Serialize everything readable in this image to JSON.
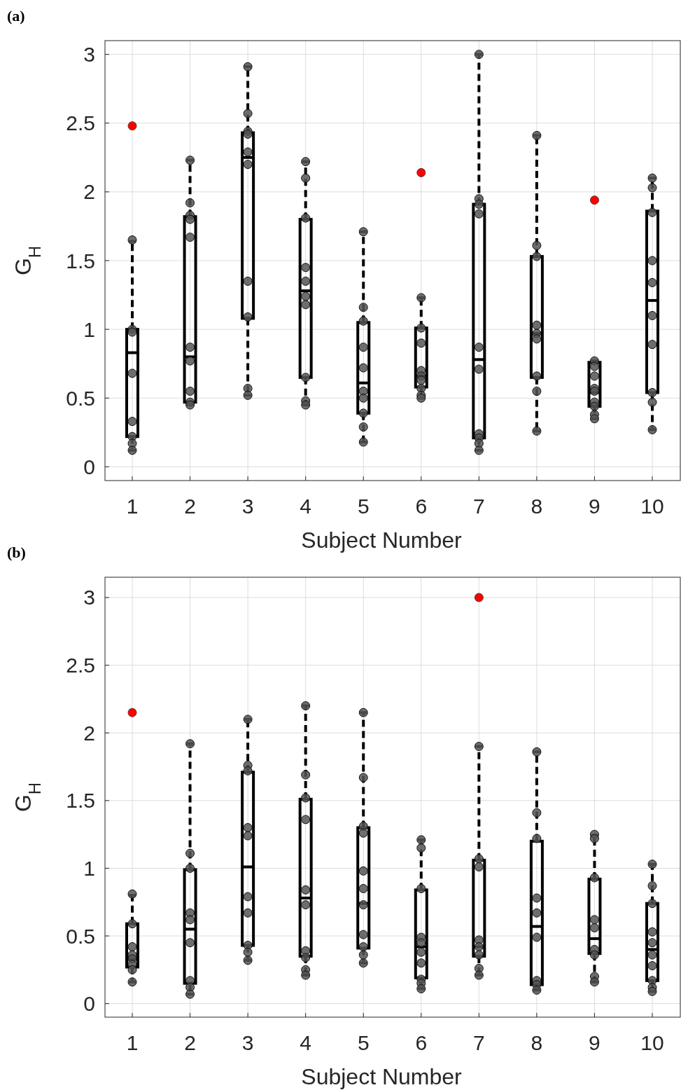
{
  "chart_data": [
    {
      "type": "box",
      "title": "(a)",
      "xlabel": "Subject Number",
      "ylabel": "G$_{H}$",
      "categories": [
        "1",
        "2",
        "3",
        "4",
        "5",
        "6",
        "7",
        "8",
        "9",
        "10"
      ],
      "ylim": [
        -0.1,
        3.1
      ],
      "yticks": [
        0,
        0.5,
        1,
        1.5,
        2,
        2.5,
        3
      ],
      "grid": true,
      "boxes": [
        {
          "low": 0.12,
          "q1": 0.22,
          "median": 0.83,
          "q3": 1.0,
          "high": 1.64,
          "outliers": [
            2.48
          ]
        },
        {
          "low": 0.45,
          "q1": 0.47,
          "median": 0.8,
          "q3": 1.82,
          "high": 2.23
        },
        {
          "low": 0.52,
          "q1": 1.08,
          "median": 2.25,
          "q3": 2.43,
          "high": 2.91
        },
        {
          "low": 0.45,
          "q1": 0.65,
          "median": 1.28,
          "q3": 1.8,
          "high": 2.22
        },
        {
          "low": 0.18,
          "q1": 0.39,
          "median": 0.61,
          "q3": 1.05,
          "high": 1.71
        },
        {
          "low": 0.5,
          "q1": 0.58,
          "median": 0.66,
          "q3": 1.01,
          "high": 1.23,
          "outliers": [
            2.14
          ]
        },
        {
          "low": 0.12,
          "q1": 0.21,
          "median": 0.78,
          "q3": 1.91,
          "high": 3.0
        },
        {
          "low": 0.26,
          "q1": 0.65,
          "median": 0.97,
          "q3": 1.53,
          "high": 2.41
        },
        {
          "low": 0.35,
          "q1": 0.44,
          "median": 0.54,
          "q3": 0.76,
          "high": 0.77,
          "outliers": [
            1.94
          ]
        },
        {
          "low": 0.27,
          "q1": 0.54,
          "median": 1.21,
          "q3": 1.86,
          "high": 2.1
        }
      ],
      "series": [
        {
          "type": "scatter",
          "color": "#555555",
          "marker": "circle",
          "x": [
            "1",
            "1",
            "1",
            "1",
            "1",
            "1",
            "1",
            "1",
            "2",
            "2",
            "2",
            "2",
            "2",
            "2",
            "2",
            "2",
            "2",
            "2",
            "3",
            "3",
            "3",
            "3",
            "3",
            "3",
            "3",
            "3",
            "3",
            "3",
            "4",
            "4",
            "4",
            "4",
            "4",
            "4",
            "4",
            "4",
            "4",
            "4",
            "5",
            "5",
            "5",
            "5",
            "5",
            "5",
            "5",
            "5",
            "5",
            "5",
            "6",
            "6",
            "6",
            "6",
            "6",
            "6",
            "6",
            "6",
            "6",
            "7",
            "7",
            "7",
            "7",
            "7",
            "7",
            "7",
            "7",
            "7",
            "7",
            "8",
            "8",
            "8",
            "8",
            "8",
            "8",
            "8",
            "8",
            "8",
            "9",
            "9",
            "9",
            "9",
            "9",
            "9",
            "9",
            "9",
            "9",
            "10",
            "10",
            "10",
            "10",
            "10",
            "10",
            "10",
            "10",
            "10",
            "10"
          ],
          "values": [
            1.65,
            1.0,
            0.98,
            0.68,
            0.33,
            0.22,
            0.17,
            0.12,
            2.23,
            1.92,
            1.83,
            1.8,
            1.67,
            0.87,
            0.77,
            0.55,
            0.47,
            0.45,
            2.91,
            2.57,
            2.44,
            2.42,
            2.29,
            2.2,
            1.35,
            1.09,
            0.57,
            0.52,
            2.22,
            2.1,
            1.81,
            1.45,
            1.35,
            1.24,
            1.18,
            0.65,
            0.48,
            0.45,
            1.71,
            1.16,
            1.06,
            0.87,
            0.72,
            0.55,
            0.5,
            0.39,
            0.29,
            0.18,
            1.23,
            1.01,
            0.9,
            0.7,
            0.66,
            0.63,
            0.57,
            0.52,
            0.5,
            3.0,
            1.95,
            1.91,
            1.84,
            0.87,
            0.71,
            0.24,
            0.21,
            0.17,
            0.12,
            2.41,
            1.61,
            1.53,
            1.03,
            0.97,
            0.93,
            0.66,
            0.55,
            0.26,
            0.77,
            0.73,
            0.66,
            0.57,
            0.55,
            0.47,
            0.44,
            0.38,
            0.35,
            2.1,
            2.03,
            1.85,
            1.5,
            1.34,
            1.1,
            0.89,
            0.54,
            0.47,
            0.27
          ]
        }
      ]
    },
    {
      "type": "box",
      "title": "(b)",
      "xlabel": "Subject Number",
      "ylabel": "G$_{H}$",
      "categories": [
        "1",
        "2",
        "3",
        "4",
        "5",
        "6",
        "7",
        "8",
        "9",
        "10"
      ],
      "ylim": [
        -0.1,
        3.15
      ],
      "yticks": [
        0,
        0.5,
        1,
        1.5,
        2,
        2.5,
        3
      ],
      "grid": true,
      "boxes": [
        {
          "low": 0.16,
          "q1": 0.27,
          "median": 0.33,
          "q3": 0.59,
          "high": 0.8,
          "outliers": [
            2.15
          ]
        },
        {
          "low": 0.07,
          "q1": 0.15,
          "median": 0.55,
          "q3": 0.99,
          "high": 1.92
        },
        {
          "low": 0.32,
          "q1": 0.43,
          "median": 1.01,
          "q3": 1.71,
          "high": 2.1
        },
        {
          "low": 0.21,
          "q1": 0.35,
          "median": 0.78,
          "q3": 1.51,
          "high": 2.2
        },
        {
          "low": 0.3,
          "q1": 0.41,
          "median": 0.74,
          "q3": 1.3,
          "high": 2.15
        },
        {
          "low": 0.11,
          "q1": 0.19,
          "median": 0.42,
          "q3": 0.84,
          "high": 1.21
        },
        {
          "low": 0.21,
          "q1": 0.35,
          "median": 0.42,
          "q3": 1.06,
          "high": 1.9,
          "outliers": [
            3.0
          ]
        },
        {
          "low": 0.1,
          "q1": 0.14,
          "median": 0.57,
          "q3": 1.2,
          "high": 1.86
        },
        {
          "low": 0.16,
          "q1": 0.37,
          "median": 0.48,
          "q3": 0.92,
          "high": 1.24
        },
        {
          "low": 0.09,
          "q1": 0.17,
          "median": 0.4,
          "q3": 0.74,
          "high": 1.03
        }
      ],
      "series": [
        {
          "type": "scatter",
          "color": "#555555",
          "marker": "circle",
          "x": [
            "1",
            "1",
            "1",
            "1",
            "1",
            "1",
            "1",
            "1",
            "2",
            "2",
            "2",
            "2",
            "2",
            "2",
            "2",
            "2",
            "2",
            "3",
            "3",
            "3",
            "3",
            "3",
            "3",
            "3",
            "3",
            "3",
            "3",
            "4",
            "4",
            "4",
            "4",
            "4",
            "4",
            "4",
            "4",
            "4",
            "4",
            "5",
            "5",
            "5",
            "5",
            "5",
            "5",
            "5",
            "5",
            "5",
            "5",
            "5",
            "6",
            "6",
            "6",
            "6",
            "6",
            "6",
            "6",
            "6",
            "6",
            "6",
            "7",
            "7",
            "7",
            "7",
            "7",
            "7",
            "7",
            "7",
            "8",
            "8",
            "8",
            "8",
            "8",
            "8",
            "8",
            "8",
            "8",
            "9",
            "9",
            "9",
            "9",
            "9",
            "9",
            "9",
            "9",
            "9",
            "10",
            "10",
            "10",
            "10",
            "10",
            "10",
            "10",
            "10",
            "10",
            "10"
          ],
          "values": [
            0.81,
            0.59,
            0.42,
            0.36,
            0.33,
            0.29,
            0.25,
            0.16,
            1.92,
            1.11,
            1.0,
            0.67,
            0.62,
            0.45,
            0.17,
            0.12,
            0.07,
            2.1,
            1.76,
            1.72,
            1.3,
            1.24,
            0.79,
            0.67,
            0.43,
            0.38,
            0.32,
            2.2,
            1.69,
            1.52,
            1.36,
            0.84,
            0.73,
            0.39,
            0.34,
            0.25,
            0.21,
            2.15,
            1.67,
            1.31,
            1.26,
            0.98,
            0.85,
            0.73,
            0.51,
            0.42,
            0.36,
            0.3,
            1.21,
            1.15,
            0.85,
            0.49,
            0.45,
            0.38,
            0.3,
            0.18,
            0.15,
            0.11,
            1.9,
            1.07,
            1.01,
            0.47,
            0.42,
            0.36,
            0.26,
            0.21,
            1.86,
            1.41,
            1.22,
            0.78,
            0.67,
            0.49,
            0.17,
            0.14,
            0.1,
            1.25,
            1.22,
            0.93,
            0.62,
            0.56,
            0.4,
            0.36,
            0.2,
            0.16,
            1.03,
            0.87,
            0.74,
            0.53,
            0.45,
            0.36,
            0.28,
            0.17,
            0.12,
            0.09
          ]
        }
      ]
    }
  ]
}
